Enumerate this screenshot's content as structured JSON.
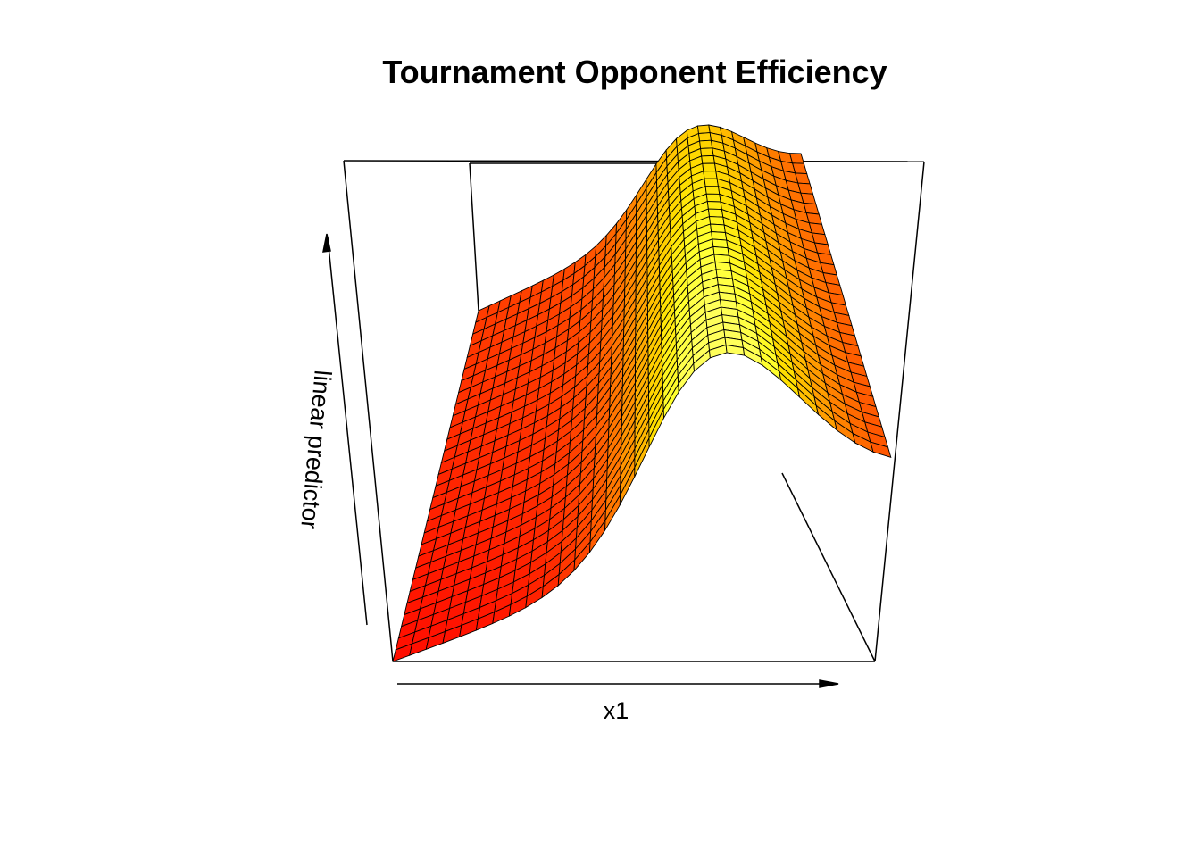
{
  "chart_data": {
    "type": "surface",
    "title": "Tournament Opponent Efficiency",
    "xlabel": "x1",
    "zlabel": "linear predictor",
    "grid_resolution": [
      30,
      30
    ],
    "colors": {
      "low": "#ff0000",
      "mid": "#ff9900",
      "high": "#ffff33",
      "mesh": "#000000",
      "box": "#000000"
    }
  }
}
